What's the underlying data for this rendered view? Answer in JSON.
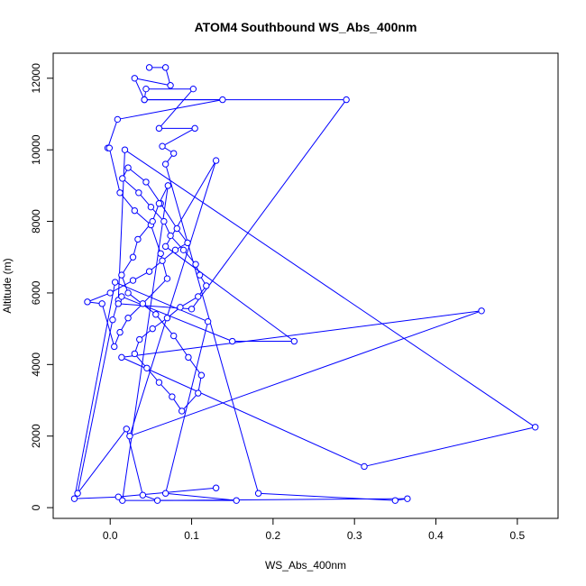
{
  "chart_data": {
    "type": "line",
    "title": "ATOM4 Southbound WS_Abs_400nm",
    "xlabel": "WS_Abs_400nm",
    "ylabel": "Altitude (m)",
    "xlim": [
      -0.07,
      0.55
    ],
    "ylim": [
      -300,
      12700
    ],
    "xticks": [
      {
        "value": 0.0,
        "label": "0.0"
      },
      {
        "value": 0.1,
        "label": "0.1"
      },
      {
        "value": 0.2,
        "label": "0.2"
      },
      {
        "value": 0.3,
        "label": "0.3"
      },
      {
        "value": 0.4,
        "label": "0.4"
      },
      {
        "value": 0.5,
        "label": "0.5"
      }
    ],
    "yticks": [
      {
        "value": 0,
        "label": "0"
      },
      {
        "value": 2000,
        "label": "2000"
      },
      {
        "value": 4000,
        "label": "4000"
      },
      {
        "value": 6000,
        "label": "6000"
      },
      {
        "value": 8000,
        "label": "8000"
      },
      {
        "value": 10000,
        "label": "10000"
      },
      {
        "value": 12000,
        "label": "12000"
      }
    ],
    "grid": false,
    "legend": "none",
    "line_color": "#0000ff",
    "marker": "open-circle",
    "series": [
      {
        "x": [
          0.048,
          0.068,
          0.074,
          0.03,
          0.042,
          0.044,
          0.102,
          0.06,
          0.104,
          0.064,
          0.078,
          0.068,
          0.182,
          0.35,
          0.365,
          0.058,
          0.04,
          0.02,
          -0.04,
          0.003,
          0.01,
          0.018,
          0.522,
          0.312,
          0.014,
          0.456,
          0.024,
          0.13,
          0.068,
          0.226,
          0.15,
          0.014,
          0.01,
          0.1,
          0.29,
          0.042,
          0.138,
          0.009,
          -0.003,
          -0.001,
          0.012,
          0.03,
          0.05,
          0.062,
          0.07,
          0.04,
          0.022,
          0.012,
          0.005,
          -0.01,
          -0.028,
          0.0,
          0.028,
          0.048,
          0.064,
          0.08,
          0.095,
          0.082,
          0.062,
          0.044,
          0.022,
          0.015,
          0.035,
          0.05,
          0.066,
          0.074,
          0.09,
          0.105,
          0.11,
          0.118,
          0.108,
          0.086,
          0.07,
          0.052,
          0.036,
          0.03,
          0.045,
          0.06,
          0.076,
          0.088,
          0.108,
          0.112,
          0.096,
          0.078,
          0.056,
          0.022,
          0.014,
          0.028,
          0.034,
          0.052,
          0.06,
          0.071,
          0.015,
          0.155,
          0.068,
          0.12,
          0.006,
          -0.044,
          0.01,
          0.13
        ],
        "y": [
          12300,
          12300,
          11800,
          12000,
          11400,
          11700,
          11700,
          10600,
          10600,
          10100,
          9900,
          9600,
          400,
          200,
          250,
          200,
          350,
          2200,
          400,
          5250,
          5800,
          10000,
          2250,
          1150,
          4200,
          5500,
          2000,
          9700,
          7300,
          4650,
          4650,
          5900,
          5700,
          5550,
          11400,
          11400,
          11400,
          10850,
          10050,
          10050,
          8800,
          8300,
          7900,
          7100,
          6400,
          5700,
          5300,
          4900,
          4500,
          5700,
          5750,
          6000,
          6350,
          6600,
          6900,
          7200,
          7400,
          7800,
          8500,
          9100,
          9500,
          9200,
          8800,
          8400,
          8000,
          7600,
          7200,
          6800,
          6500,
          6200,
          5900,
          5600,
          5300,
          5000,
          4700,
          4300,
          3900,
          3500,
          3100,
          2700,
          3200,
          3700,
          4200,
          4800,
          5400,
          6000,
          6500,
          7000,
          7500,
          8000,
          8500,
          9000,
          200,
          200,
          400,
          5200,
          6300,
          250,
          300,
          550
        ]
      }
    ]
  }
}
